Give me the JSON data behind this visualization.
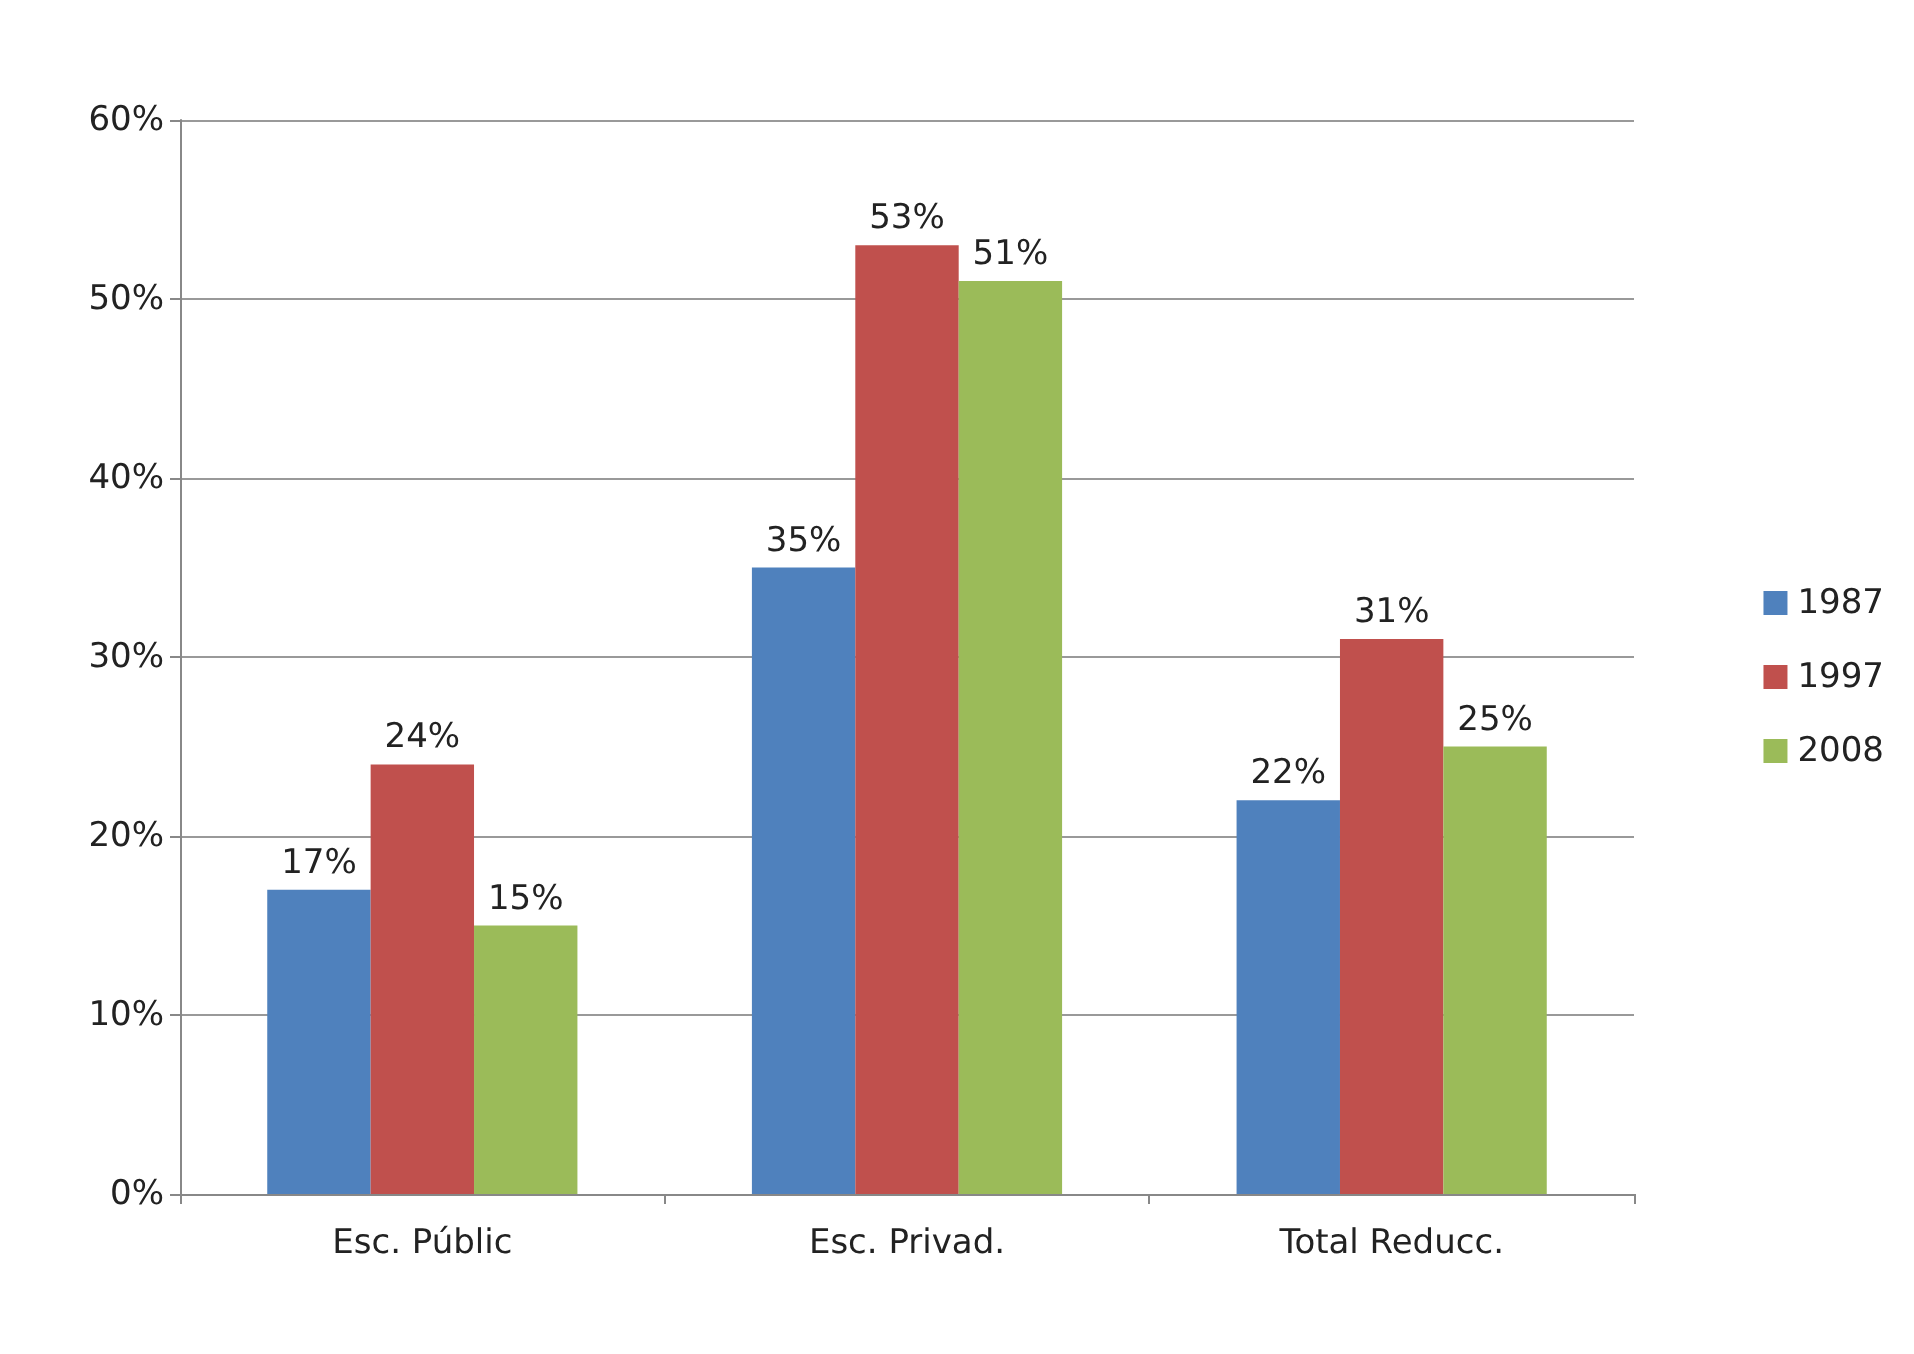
{
  "chart_data": {
    "type": "bar",
    "categories": [
      "Esc. Públic",
      "Esc. Privad.",
      "Total Reducc."
    ],
    "series": [
      {
        "name": "1987",
        "color": "#4f81bd",
        "values": [
          17,
          35,
          22
        ],
        "value_labels": [
          "17%",
          "35%",
          "22%"
        ]
      },
      {
        "name": "1997",
        "color": "#c0504d",
        "values": [
          24,
          53,
          31
        ],
        "value_labels": [
          "24%",
          "53%",
          "31%"
        ]
      },
      {
        "name": "2008",
        "color": "#9bbb59",
        "values": [
          15,
          51,
          25
        ],
        "value_labels": [
          "15%",
          "51%",
          "25%"
        ]
      }
    ],
    "ylim": [
      0,
      60
    ],
    "yticks": [
      {
        "value": 0,
        "label": "0%"
      },
      {
        "value": 10,
        "label": "10%"
      },
      {
        "value": 20,
        "label": "20%"
      },
      {
        "value": 30,
        "label": "30%"
      },
      {
        "value": 40,
        "label": "40%"
      },
      {
        "value": 50,
        "label": "50%"
      },
      {
        "value": 60,
        "label": "60%"
      }
    ],
    "grid": "y",
    "legend": "right"
  }
}
